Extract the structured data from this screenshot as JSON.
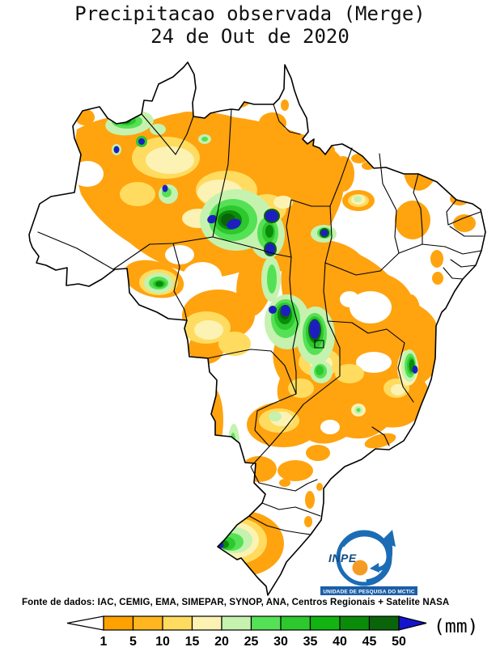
{
  "title": {
    "line1": "Precipitacao observada (Merge)",
    "line2": "24 de Out de 2020"
  },
  "footer": {
    "source_label": "Fonte de dados: IAC, CEMIG, EMA, SIMEPAR, SYNOP, ANA, Centros Regionais + Satelite NASA"
  },
  "legend": {
    "unit": "(mm)",
    "ticks": [
      "1",
      "5",
      "10",
      "15",
      "20",
      "25",
      "30",
      "35",
      "40",
      "45",
      "50"
    ],
    "colors": [
      "#FFA101",
      "#FFB61F",
      "#FFDC5F",
      "#FBF2B4",
      "#C5F2AF",
      "#55E155",
      "#2DC82D",
      "#12B412",
      "#0A8C0A",
      "#0A640A"
    ],
    "overflow_color": "#1414CD",
    "underflow_color": "#FFFFFF"
  },
  "map": {
    "palette_navy_above_50mm": "#1E1EC0",
    "border_color": "#000000",
    "no_data_color": "#FFFFFF"
  },
  "logo": {
    "acronym": "INPE",
    "banner": "UNIDADE DE PESQUISA DO MCTIC",
    "brand_blue": "#1B6CB5",
    "banner_blue": "#1B5EA8",
    "brand_orange": "#F59A23"
  }
}
